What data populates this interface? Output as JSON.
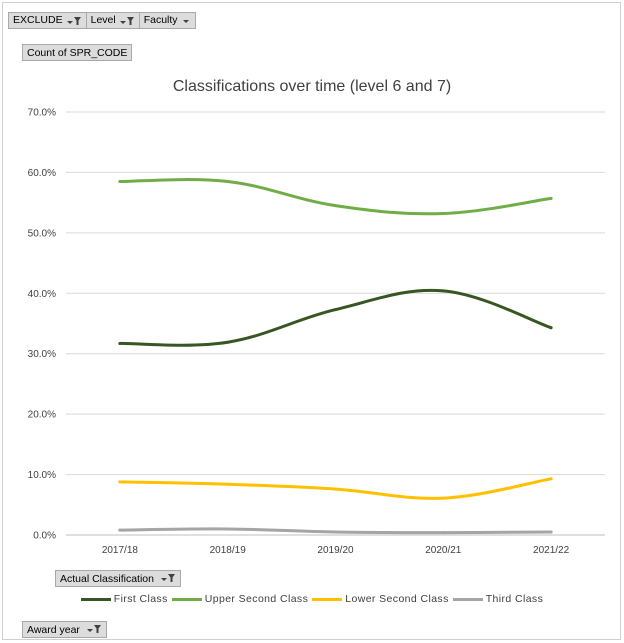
{
  "filters": [
    {
      "label": "EXCLUDE",
      "icon": "filter-icon"
    },
    {
      "label": "Level",
      "icon": "filter-icon"
    },
    {
      "label": "Faculty",
      "icon": "dropdown-arrow-icon"
    }
  ],
  "value_field": "Count of SPR_CODE",
  "axis_field_button": {
    "label": "Award year",
    "icon": "filter-icon"
  },
  "legend_field_button": {
    "label": "Actual Classification",
    "icon": "filter-icon"
  },
  "chart_data": {
    "type": "line",
    "title": "Classifications over time (level 6 and 7)",
    "xlabel": "",
    "ylabel": "",
    "categories": [
      "2017/18",
      "2018/19",
      "2019/20",
      "2020/21",
      "2021/22"
    ],
    "ylim": [
      0,
      70
    ],
    "yticks": [
      "0.0%",
      "10.0%",
      "20.0%",
      "30.0%",
      "40.0%",
      "50.0%",
      "60.0%",
      "70.0%"
    ],
    "grid": true,
    "legend_position": "bottom",
    "series": [
      {
        "name": "First Class",
        "color": "#375623",
        "values": [
          31.7,
          31.9,
          37.3,
          40.4,
          34.3
        ]
      },
      {
        "name": "Upper Second Class",
        "color": "#70AD47",
        "values": [
          58.5,
          58.5,
          54.5,
          53.2,
          55.7
        ]
      },
      {
        "name": "Lower Second Class",
        "color": "#FFC000",
        "values": [
          8.8,
          8.4,
          7.6,
          6.1,
          9.3
        ]
      },
      {
        "name": "Third Class",
        "color": "#A5A5A5",
        "values": [
          0.8,
          1.0,
          0.5,
          0.4,
          0.5
        ]
      }
    ]
  }
}
